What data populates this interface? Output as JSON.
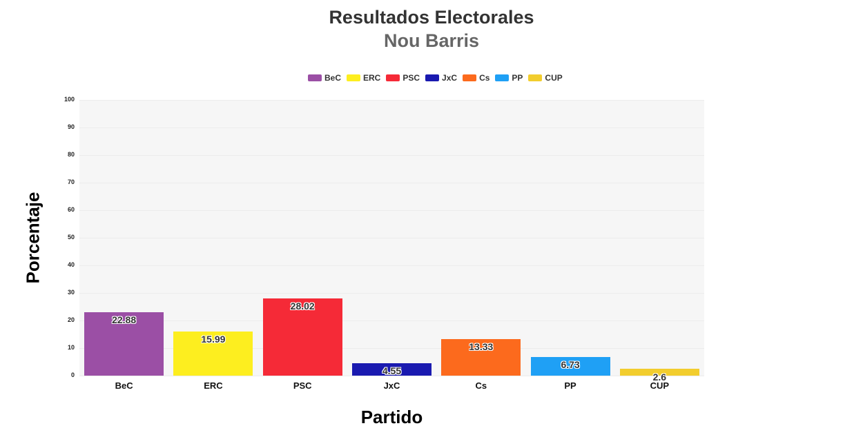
{
  "chart_data": {
    "type": "bar",
    "title": "Resultados Electorales",
    "subtitle": "Nou Barris",
    "xlabel": "Partido",
    "ylabel": "Porcentaje",
    "ylim": [
      0,
      100
    ],
    "yticks": [
      0,
      10,
      20,
      30,
      40,
      50,
      60,
      70,
      80,
      90,
      100
    ],
    "grid": true,
    "legend_position": "top",
    "categories": [
      "BeC",
      "ERC",
      "PSC",
      "JxC",
      "Cs",
      "PP",
      "CUP"
    ],
    "values": [
      22.88,
      15.99,
      28.02,
      4.55,
      13.33,
      6.73,
      2.6
    ],
    "colors": [
      "#9b4fa5",
      "#fdee1f",
      "#f52a37",
      "#1a1ab0",
      "#fc6a1d",
      "#1fa0f5",
      "#f2cd2e"
    ],
    "value_labels": [
      "22.88",
      "15.99",
      "28.02",
      "4.55",
      "13.33",
      "6.73",
      "2.6"
    ]
  }
}
